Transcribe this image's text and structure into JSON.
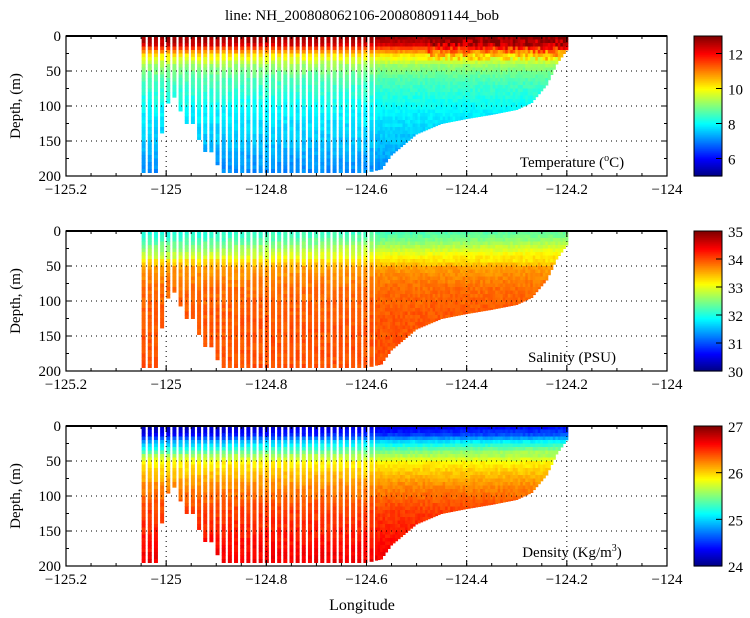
{
  "chart_data": [
    {
      "type": "heatmap",
      "title": "line: NH_200808062106-200808091144_bob",
      "xlabel": "",
      "ylabel": "Depth, (m)",
      "xlim": [
        -125.2,
        -124
      ],
      "ylim": [
        200,
        0
      ],
      "x_ticks": [
        "-125.2",
        "-125",
        "-124.8",
        "-124.6",
        "-124.4",
        "-124.2",
        "-124"
      ],
      "y_ticks": [
        "0",
        "50",
        "100",
        "150",
        "200"
      ],
      "label": {
        "prefix": "Temperature (",
        "sup": "o",
        "suffix": "C)"
      },
      "colorbar": {
        "range": [
          5,
          13
        ],
        "ticks": [
          "6",
          "8",
          "10",
          "12"
        ]
      },
      "profile": {
        "depth": [
          0,
          10,
          15,
          25,
          40,
          60,
          100,
          150,
          200
        ],
        "value": [
          12.8,
          12.3,
          11.5,
          10.2,
          9.2,
          8.6,
          8.0,
          7.5,
          7.0
        ]
      },
      "grid": true
    },
    {
      "type": "heatmap",
      "title": "",
      "xlabel": "",
      "ylabel": "Depth, (m)",
      "xlim": [
        -125.2,
        -124
      ],
      "ylim": [
        200,
        0
      ],
      "x_ticks": [
        "-125.2",
        "-125",
        "-124.8",
        "-124.6",
        "-124.4",
        "-124.2",
        "-124"
      ],
      "y_ticks": [
        "0",
        "50",
        "100",
        "150",
        "200"
      ],
      "label": {
        "prefix": "Salinity (PSU)",
        "sup": "",
        "suffix": ""
      },
      "colorbar": {
        "range": [
          30,
          35
        ],
        "ticks": [
          "30",
          "31",
          "32",
          "33",
          "34",
          "35"
        ]
      },
      "profile": {
        "depth": [
          0,
          10,
          20,
          35,
          50,
          80,
          120,
          200
        ],
        "value": [
          32.2,
          32.4,
          32.7,
          33.1,
          33.6,
          33.85,
          33.95,
          34.0
        ]
      },
      "grid": true
    },
    {
      "type": "heatmap",
      "title": "",
      "xlabel": "Longitude",
      "ylabel": "Depth, (m)",
      "xlim": [
        -125.2,
        -124
      ],
      "ylim": [
        200,
        0
      ],
      "x_ticks": [
        "-125.2",
        "-125",
        "-124.8",
        "-124.6",
        "-124.4",
        "-124.2",
        "-124"
      ],
      "y_ticks": [
        "0",
        "50",
        "100",
        "150",
        "200"
      ],
      "label": {
        "prefix": "Density (Kg/m",
        "sup": "3",
        "suffix": ")"
      },
      "colorbar": {
        "range": [
          24,
          27
        ],
        "ticks": [
          "24",
          "25",
          "26",
          "27"
        ]
      },
      "profile": {
        "depth": [
          0,
          10,
          20,
          35,
          50,
          80,
          120,
          200
        ],
        "value": [
          24.3,
          24.5,
          25.0,
          25.5,
          25.9,
          26.2,
          26.45,
          26.7
        ]
      },
      "grid": true
    }
  ],
  "bottom_depth": {
    "lon": [
      -125.045,
      -125.02,
      -125.0,
      -124.985,
      -124.96,
      -124.94,
      -124.93,
      -124.91,
      -124.89,
      -124.87,
      -124.6,
      -124.57,
      -124.55,
      -124.5,
      -124.45,
      -124.4,
      -124.35,
      -124.3,
      -124.27,
      -124.24,
      -124.22,
      -124.2
    ],
    "depth": [
      195,
      195,
      100,
      85,
      125,
      125,
      165,
      165,
      195,
      195,
      195,
      190,
      170,
      140,
      125,
      118,
      112,
      105,
      95,
      70,
      40,
      20
    ]
  }
}
